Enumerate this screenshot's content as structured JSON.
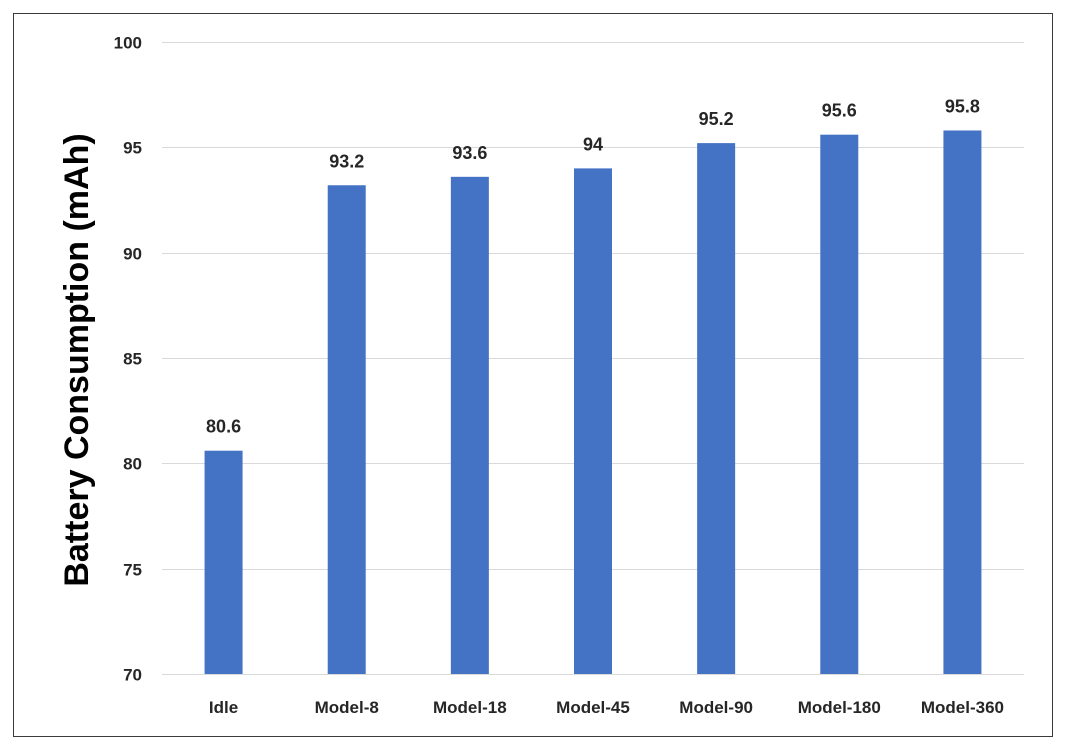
{
  "chart_data": {
    "type": "bar",
    "title": "",
    "xlabel": "",
    "ylabel": "Battery Consumption (mAh)",
    "categories": [
      "Idle",
      "Model-8",
      "Model-18",
      "Model-45",
      "Model-90",
      "Model-180",
      "Model-360"
    ],
    "values": [
      80.6,
      93.2,
      93.6,
      94,
      95.2,
      95.6,
      95.8
    ],
    "data_labels": [
      "80.6",
      "93.2",
      "93.6",
      "94",
      "95.2",
      "95.6",
      "95.8"
    ],
    "ylim": [
      70,
      100
    ],
    "yticks": [
      70,
      75,
      80,
      85,
      90,
      95,
      100
    ],
    "ytick_labels": [
      "70",
      "75",
      "80",
      "85",
      "90",
      "95",
      "100"
    ],
    "grid": true,
    "legend": "none",
    "bar_color": "#4472C4"
  }
}
